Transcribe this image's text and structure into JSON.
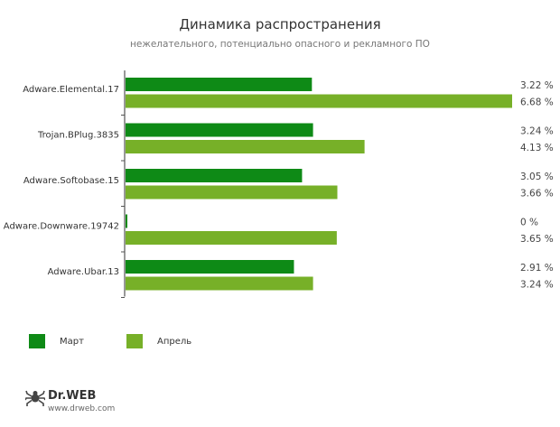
{
  "header": {
    "title": "Динамика распространения",
    "subtitle": "нежелательного, потенциально опасного и рекламного ПО"
  },
  "legend": {
    "items": [
      {
        "label": "Март",
        "color": "#0e8a16"
      },
      {
        "label": "Апрель",
        "color": "#77b028"
      }
    ]
  },
  "logo": {
    "brand": "Dr.WEB",
    "url": "www.drweb.com"
  },
  "chart_data": {
    "type": "bar",
    "orientation": "horizontal",
    "categories": [
      "Adware.Elemental.17",
      "Trojan.BPlug.3835",
      "Adware.Softobase.15",
      "Adware.Downware.19742",
      "Adware.Ubar.13"
    ],
    "series": [
      {
        "name": "Март",
        "color": "#0e8a16",
        "values": [
          3.22,
          3.24,
          3.05,
          0,
          2.91
        ],
        "labels": [
          "3.22 %",
          "3.24 %",
          "3.05 %",
          "0 %",
          "2.91 %"
        ]
      },
      {
        "name": "Апрель",
        "color": "#77b028",
        "values": [
          6.68,
          4.13,
          3.66,
          3.65,
          3.24
        ],
        "labels": [
          "6.68 %",
          "4.13 %",
          "3.66 %",
          "3.65 %",
          "3.24 %"
        ]
      }
    ],
    "xlim": [
      0,
      6.68
    ],
    "grid": false,
    "legend_position": "bottom-left",
    "value_labels": "right"
  }
}
